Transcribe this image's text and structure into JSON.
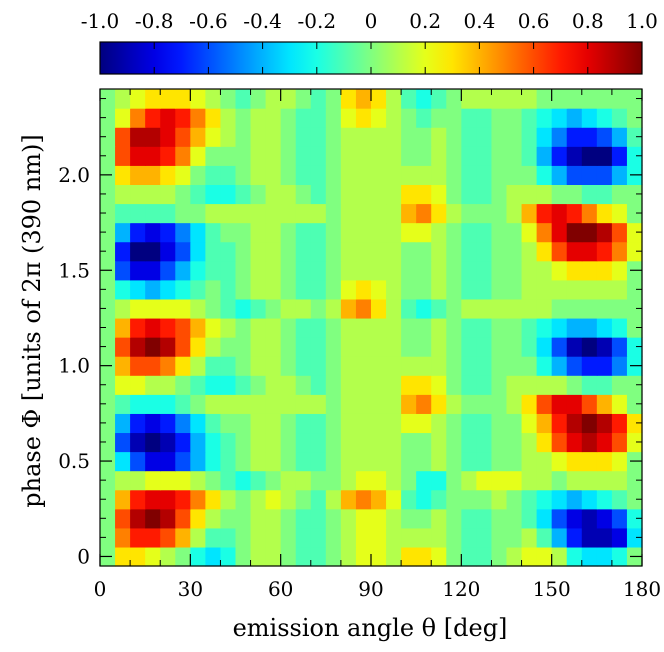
{
  "chart_data": {
    "type": "heatmap",
    "title": "",
    "xlabel": "emission angle θ [deg]",
    "ylabel": "phase Φ [units of 2π (390 nm)]",
    "xlim": [
      0,
      180
    ],
    "ylim": [
      -0.05,
      2.45
    ],
    "xticks": [
      0,
      30,
      60,
      90,
      120,
      150,
      180
    ],
    "xtick_labels": [
      "0",
      "30",
      "60",
      "90",
      "120",
      "150",
      "180"
    ],
    "yticks": [
      0,
      0.5,
      1.0,
      1.5,
      2.0
    ],
    "ytick_labels": [
      "0",
      "0.5",
      "1.0",
      "1.5",
      "2.0"
    ],
    "colorbar": {
      "colormap": "jet",
      "range": [
        -1.0,
        1.0
      ],
      "ticks": [
        -1.0,
        -0.8,
        -0.6,
        -0.4,
        -0.2,
        0,
        0.2,
        0.4,
        0.6,
        0.8,
        1.0
      ],
      "tick_labels": [
        "-1.0",
        "-0.8",
        "-0.6",
        "-0.4",
        "-0.2",
        "0",
        "0.2",
        "0.4",
        "0.6",
        "0.8",
        "1.0"
      ],
      "position": "top"
    },
    "x_bins": [
      0,
      5,
      10,
      15,
      20,
      25,
      30,
      35,
      40,
      45,
      50,
      55,
      60,
      65,
      70,
      75,
      80,
      85,
      90,
      95,
      100,
      105,
      110,
      115,
      120,
      125,
      130,
      135,
      140,
      145,
      150,
      155,
      160,
      165,
      170,
      175,
      180
    ],
    "y_bins": [
      -0.05,
      0.05,
      0.15,
      0.25,
      0.35,
      0.45,
      0.55,
      0.65,
      0.75,
      0.85,
      0.95,
      1.05,
      1.15,
      1.25,
      1.35,
      1.45,
      1.55,
      1.65,
      1.75,
      1.85,
      1.95,
      2.05,
      2.15,
      2.25,
      2.35,
      2.45
    ],
    "values": [
      [
        0,
        0.3,
        0.3,
        0.2,
        0.1,
        0,
        -0.2,
        -0.3,
        -0.2,
        0,
        0.1,
        0.1,
        0,
        -0.1,
        -0.1,
        0,
        0.1,
        0.2,
        0.2,
        0.1,
        0.3,
        0.3,
        0.2,
        0,
        -0.1,
        -0.1,
        0,
        0.1,
        0.2,
        0.2,
        0.1,
        -0.2,
        -0.3,
        -0.3,
        -0.2,
        0
      ],
      [
        0,
        0.5,
        0.7,
        0.7,
        0.6,
        0.4,
        0.1,
        -0.1,
        -0.1,
        0,
        0.1,
        0.1,
        0,
        -0.1,
        -0.1,
        0,
        0.1,
        0.2,
        0.2,
        0.1,
        0.1,
        0.1,
        0.1,
        0,
        -0.1,
        -0.1,
        0,
        0,
        0.1,
        -0.1,
        -0.4,
        -0.7,
        -0.9,
        -0.9,
        -0.8,
        -0.3
      ],
      [
        0,
        0.6,
        0.9,
        1,
        0.9,
        0.6,
        0.3,
        0.1,
        0,
        0,
        0.1,
        0.1,
        0,
        -0.1,
        -0.1,
        0,
        0.1,
        0.2,
        0.2,
        0.1,
        0,
        0,
        0.1,
        0,
        -0.1,
        -0.1,
        0,
        0,
        -0.1,
        -0.3,
        -0.6,
        -0.8,
        -0.9,
        -0.8,
        -0.6,
        -0.2
      ],
      [
        0,
        0.4,
        0.7,
        0.8,
        0.8,
        0.7,
        0.5,
        0.3,
        0.1,
        0,
        0.1,
        0.2,
        0.1,
        0,
        -0.1,
        0.1,
        0.4,
        0.5,
        0.4,
        0.2,
        -0.1,
        -0.2,
        -0.1,
        0,
        0,
        0,
        0.1,
        0,
        -0.1,
        -0.2,
        -0.3,
        -0.4,
        -0.3,
        -0.2,
        -0.1,
        0
      ],
      [
        0,
        0.1,
        0.1,
        0.2,
        0.2,
        0.2,
        0.1,
        0,
        -0.1,
        -0.2,
        -0.1,
        0,
        0.1,
        0.1,
        0,
        0,
        0.1,
        0.2,
        0.2,
        0.1,
        0,
        -0.2,
        -0.2,
        0,
        0.1,
        0.2,
        0.2,
        0.2,
        0.1,
        0.1,
        0,
        0.1,
        0.1,
        0.1,
        0.1,
        0
      ],
      [
        0,
        -0.3,
        -0.6,
        -0.8,
        -0.8,
        -0.6,
        -0.4,
        -0.2,
        -0.1,
        0,
        0.1,
        0.1,
        0,
        -0.1,
        -0.1,
        0,
        0.1,
        0.1,
        0.1,
        0.1,
        0,
        0,
        0.1,
        0,
        -0.1,
        -0.1,
        0,
        0,
        0.1,
        0.1,
        0.2,
        0.3,
        0.3,
        0.3,
        0.2,
        0
      ],
      [
        0,
        -0.6,
        -0.9,
        -1,
        -0.9,
        -0.7,
        -0.4,
        -0.2,
        -0.1,
        0,
        0.1,
        0.1,
        0,
        -0.1,
        -0.1,
        0,
        0.1,
        0.1,
        0.1,
        0.1,
        0,
        0,
        0.1,
        0,
        -0.1,
        -0.1,
        0,
        0,
        0.1,
        0.3,
        0.6,
        0.8,
        0.9,
        0.8,
        0.6,
        0.2
      ],
      [
        0,
        -0.4,
        -0.7,
        -0.8,
        -0.7,
        -0.5,
        -0.3,
        -0.1,
        0,
        0,
        0.1,
        0.1,
        0,
        -0.1,
        -0.1,
        0,
        0.1,
        0.1,
        0.1,
        0.1,
        0.2,
        0.2,
        0.1,
        0,
        -0.1,
        -0.1,
        0,
        0,
        0.2,
        0.4,
        0.7,
        0.9,
        1,
        0.9,
        0.7,
        0.3
      ],
      [
        0,
        -0.1,
        -0.2,
        -0.2,
        -0.2,
        -0.1,
        0,
        0.1,
        0.1,
        0.1,
        0.1,
        0.1,
        0.1,
        0.1,
        0.1,
        0,
        0.1,
        0.1,
        0.1,
        0.1,
        0.4,
        0.5,
        0.3,
        0.1,
        0,
        0,
        0,
        0.1,
        0.3,
        0.6,
        0.8,
        0.8,
        0.6,
        0.4,
        0.2,
        0
      ],
      [
        0,
        0.2,
        0.2,
        0.1,
        0.1,
        0,
        -0.1,
        -0.2,
        -0.2,
        -0.1,
        0,
        0.1,
        0.1,
        0,
        -0.1,
        0,
        0.1,
        0.1,
        0.1,
        0.1,
        0.3,
        0.3,
        0.2,
        0,
        -0.1,
        -0.1,
        0,
        0.1,
        0.1,
        0.1,
        0.1,
        0,
        -0.1,
        -0.1,
        0,
        0
      ],
      [
        0,
        0.4,
        0.6,
        0.6,
        0.5,
        0.3,
        0.1,
        -0.1,
        -0.1,
        0,
        0.1,
        0.1,
        0,
        -0.1,
        -0.1,
        0,
        0.1,
        0.1,
        0.1,
        0.1,
        0.1,
        0.1,
        0.1,
        0,
        -0.1,
        -0.1,
        0,
        0,
        0,
        -0.2,
        -0.4,
        -0.6,
        -0.7,
        -0.7,
        -0.5,
        -0.2
      ],
      [
        0,
        0.6,
        0.9,
        1,
        0.9,
        0.6,
        0.3,
        0.1,
        0,
        0,
        0.1,
        0.1,
        0,
        -0.1,
        -0.1,
        0,
        0.1,
        0.1,
        0.1,
        0.1,
        0,
        0,
        0.1,
        0,
        -0.1,
        -0.1,
        0,
        0,
        -0.1,
        -0.3,
        -0.6,
        -0.9,
        -1,
        -0.9,
        -0.6,
        -0.2
      ],
      [
        0,
        0.4,
        0.7,
        0.8,
        0.7,
        0.6,
        0.4,
        0.2,
        0.1,
        0,
        0.1,
        0.1,
        0,
        -0.1,
        -0.1,
        0,
        0.1,
        0.1,
        0.1,
        0.1,
        0,
        0,
        0.1,
        0,
        -0.1,
        -0.1,
        0,
        0,
        -0.1,
        -0.2,
        -0.3,
        -0.4,
        -0.4,
        -0.3,
        -0.2,
        0
      ],
      [
        0,
        0.1,
        0.2,
        0.2,
        0.2,
        0.2,
        0.1,
        0,
        -0.1,
        -0.2,
        -0.1,
        0,
        0.1,
        0.1,
        0,
        0.1,
        0.4,
        0.5,
        0.3,
        0.1,
        -0.1,
        -0.2,
        -0.1,
        0,
        0.1,
        0.1,
        0.1,
        0.1,
        0.1,
        0.1,
        0,
        0,
        0,
        0,
        0,
        0
      ],
      [
        0,
        -0.2,
        -0.3,
        -0.4,
        -0.3,
        -0.2,
        -0.1,
        0,
        -0.1,
        0,
        0.1,
        0.1,
        0,
        -0.1,
        -0.1,
        0,
        0.2,
        0.3,
        0.2,
        0.1,
        0,
        0,
        0.1,
        0,
        -0.1,
        -0.1,
        0,
        0,
        0.1,
        0.1,
        0.1,
        0.1,
        0.1,
        0.1,
        0.1,
        0
      ],
      [
        0,
        -0.6,
        -0.8,
        -0.8,
        -0.6,
        -0.4,
        -0.2,
        -0.1,
        -0.1,
        0,
        0.1,
        0.1,
        0,
        -0.1,
        -0.1,
        0,
        0.1,
        0.1,
        0.1,
        0.1,
        0,
        0,
        0.1,
        0,
        -0.1,
        -0.1,
        0,
        0,
        0.1,
        0.1,
        0.2,
        0.3,
        0.3,
        0.3,
        0.2,
        0
      ],
      [
        0,
        -0.7,
        -1,
        -1,
        -0.8,
        -0.6,
        -0.3,
        -0.1,
        -0.1,
        0,
        0.1,
        0.1,
        0,
        -0.1,
        -0.1,
        0,
        0.1,
        0.1,
        0.1,
        0.1,
        0,
        0,
        0.1,
        0,
        -0.1,
        -0.1,
        0,
        0,
        0.1,
        0.3,
        0.6,
        0.8,
        0.8,
        0.7,
        0.5,
        0.2
      ],
      [
        0,
        -0.4,
        -0.7,
        -0.8,
        -0.7,
        -0.5,
        -0.3,
        -0.1,
        0,
        0,
        0.1,
        0.1,
        0,
        -0.1,
        -0.1,
        0,
        0.1,
        0.1,
        0.1,
        0.1,
        0.2,
        0.2,
        0.1,
        0,
        -0.1,
        -0.1,
        0,
        0,
        0.2,
        0.5,
        0.8,
        1,
        1,
        0.9,
        0.6,
        0.2
      ],
      [
        0,
        -0.1,
        -0.1,
        -0.1,
        -0.1,
        0,
        0,
        0.1,
        0.1,
        0.1,
        0.1,
        0.1,
        0.1,
        0.1,
        0.1,
        0,
        0.1,
        0.1,
        0.1,
        0.1,
        0.4,
        0.5,
        0.3,
        0.1,
        0,
        0,
        0,
        0.1,
        0.4,
        0.7,
        0.8,
        0.7,
        0.5,
        0.3,
        0.2,
        0
      ],
      [
        0,
        0.1,
        0.1,
        0.1,
        0.1,
        0,
        -0.1,
        -0.2,
        -0.2,
        -0.1,
        0,
        0.1,
        0.1,
        0,
        -0.1,
        0,
        0.1,
        0.1,
        0.1,
        0.1,
        0.3,
        0.3,
        0.2,
        0,
        -0.1,
        -0.1,
        0,
        0.1,
        0.1,
        0.1,
        0,
        0,
        -0.1,
        -0.1,
        0,
        0
      ],
      [
        0,
        0.3,
        0.4,
        0.4,
        0.3,
        0.2,
        0,
        -0.1,
        -0.1,
        0,
        0.1,
        0.1,
        0,
        -0.1,
        -0.1,
        0,
        0.1,
        0.1,
        0.1,
        0.1,
        0.1,
        0.1,
        0.1,
        0,
        -0.1,
        -0.1,
        0,
        0,
        0,
        -0.2,
        -0.4,
        -0.6,
        -0.6,
        -0.6,
        -0.4,
        -0.2
      ],
      [
        0,
        0.6,
        0.8,
        0.8,
        0.7,
        0.5,
        0.2,
        0,
        0,
        0,
        0.1,
        0.1,
        0,
        -0.1,
        -0.1,
        0,
        0.1,
        0.1,
        0.1,
        0.1,
        0,
        0,
        0.1,
        0,
        -0.1,
        -0.1,
        0,
        0,
        -0.1,
        -0.4,
        -0.7,
        -0.9,
        -1,
        -1,
        -0.7,
        -0.2
      ],
      [
        0,
        0.6,
        0.9,
        0.9,
        0.8,
        0.6,
        0.4,
        0.2,
        0.1,
        0,
        0.1,
        0.1,
        0,
        -0.1,
        -0.1,
        0,
        0.1,
        0.1,
        0.1,
        0.1,
        0,
        0,
        0.1,
        0,
        -0.1,
        -0.1,
        0,
        0,
        -0.1,
        -0.3,
        -0.5,
        -0.7,
        -0.7,
        -0.6,
        -0.4,
        -0.1
      ],
      [
        0,
        0.2,
        0.5,
        0.7,
        0.8,
        0.7,
        0.5,
        0.3,
        0.1,
        0,
        0.1,
        0.1,
        0,
        -0.1,
        -0.1,
        0,
        0.2,
        0.3,
        0.2,
        0.1,
        0,
        -0.1,
        0,
        0,
        -0.1,
        -0.1,
        0,
        0,
        -0.1,
        -0.2,
        -0.3,
        -0.4,
        -0.3,
        -0.2,
        -0.1,
        0
      ],
      [
        0,
        0.1,
        0.2,
        0.3,
        0.3,
        0.3,
        0.2,
        0.1,
        0,
        -0.1,
        0,
        0.1,
        0.1,
        0,
        -0.1,
        0,
        0.3,
        0.4,
        0.3,
        0.1,
        -0.1,
        -0.2,
        -0.1,
        0,
        0.1,
        0.1,
        0.1,
        0.1,
        0.1,
        0,
        0,
        0,
        0,
        0,
        0,
        0
      ]
    ]
  }
}
